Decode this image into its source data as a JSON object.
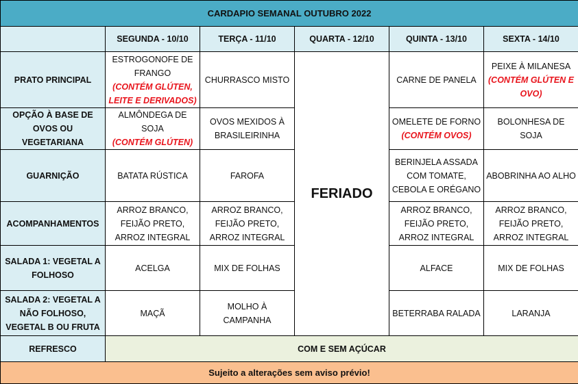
{
  "title": "CARDAPIO SEMANAL OUTUBRO 2022",
  "days": [
    "SEGUNDA - 10/10",
    "TERÇA - 11/10",
    "QUARTA - 12/10",
    "QUINTA - 13/10",
    "SEXTA - 14/10"
  ],
  "holiday": {
    "day_index": 2,
    "label": "FERIADO"
  },
  "rows": [
    {
      "label": "PRATO PRINCIPAL",
      "cells": [
        {
          "text": "ESTROGONOFE DE FRANGO",
          "allergen": "(CONTÉM GLÚTEN, LEITE E DERIVADOS)"
        },
        {
          "text": "CHURRASCO MISTO"
        },
        null,
        {
          "text": "CARNE DE PANELA"
        },
        {
          "text": "PEIXE À MILANESA",
          "allergen": "(CONTÉM GLÚTEN E OVO)"
        }
      ]
    },
    {
      "label": "OPÇÃO À BASE DE OVOS OU VEGETARIANA",
      "cells": [
        {
          "text": "ALMÔNDEGA DE SOJA",
          "allergen": "(CONTÉM GLÚTEN)"
        },
        {
          "text": "OVOS MEXIDOS À BRASILEIRINHA"
        },
        null,
        {
          "text": "OMELETE DE FORNO",
          "allergen": "(CONTÉM OVOS)"
        },
        {
          "text": "BOLONHESA DE SOJA"
        }
      ]
    },
    {
      "label": "GUARNIÇÃO",
      "cells": [
        {
          "text": "BATATA RÚSTICA"
        },
        {
          "text": "FAROFA"
        },
        null,
        {
          "text": "BERINJELA ASSADA COM TOMATE, CEBOLA E ORÉGANO"
        },
        {
          "text": "ABOBRINHA AO ALHO"
        }
      ]
    },
    {
      "label": "ACOMPANHAMENTOS",
      "cells": [
        {
          "text": "ARROZ BRANCO, FEIJÃO PRETO, ARROZ INTEGRAL"
        },
        {
          "text": "ARROZ BRANCO, FEIJÃO PRETO, ARROZ INTEGRAL"
        },
        null,
        {
          "text": "ARROZ BRANCO, FEIJÃO PRETO, ARROZ INTEGRAL"
        },
        {
          "text": "ARROZ BRANCO, FEIJÃO PRETO, ARROZ INTEGRAL"
        }
      ]
    },
    {
      "label": "SALADA 1: VEGETAL A FOLHOSO",
      "cells": [
        {
          "text": "ACELGA"
        },
        {
          "text": "MIX DE FOLHAS"
        },
        null,
        {
          "text": "ALFACE"
        },
        {
          "text": "MIX DE FOLHAS"
        }
      ]
    },
    {
      "label": "SALADA 2: VEGETAL A NÃO FOLHOSO, VEGETAL B OU FRUTA",
      "cells": [
        {
          "text": "MAÇÃ"
        },
        {
          "text": "MOLHO À CAMPANHA"
        },
        null,
        {
          "text": "BETERRABA RALADA"
        },
        {
          "text": "LARANJA"
        }
      ]
    }
  ],
  "refresco": {
    "label": "REFRESCO",
    "value": "COM E SEM AÇÚCAR"
  },
  "footer": "Sujeito a alterações sem aviso prévio!",
  "colors": {
    "title_bg": "#4BACC6",
    "header_bg": "#DAEEF3",
    "refresco_bg": "#EBF1DE",
    "footer_bg": "#FABF8F",
    "allergen": "#E8141C"
  }
}
